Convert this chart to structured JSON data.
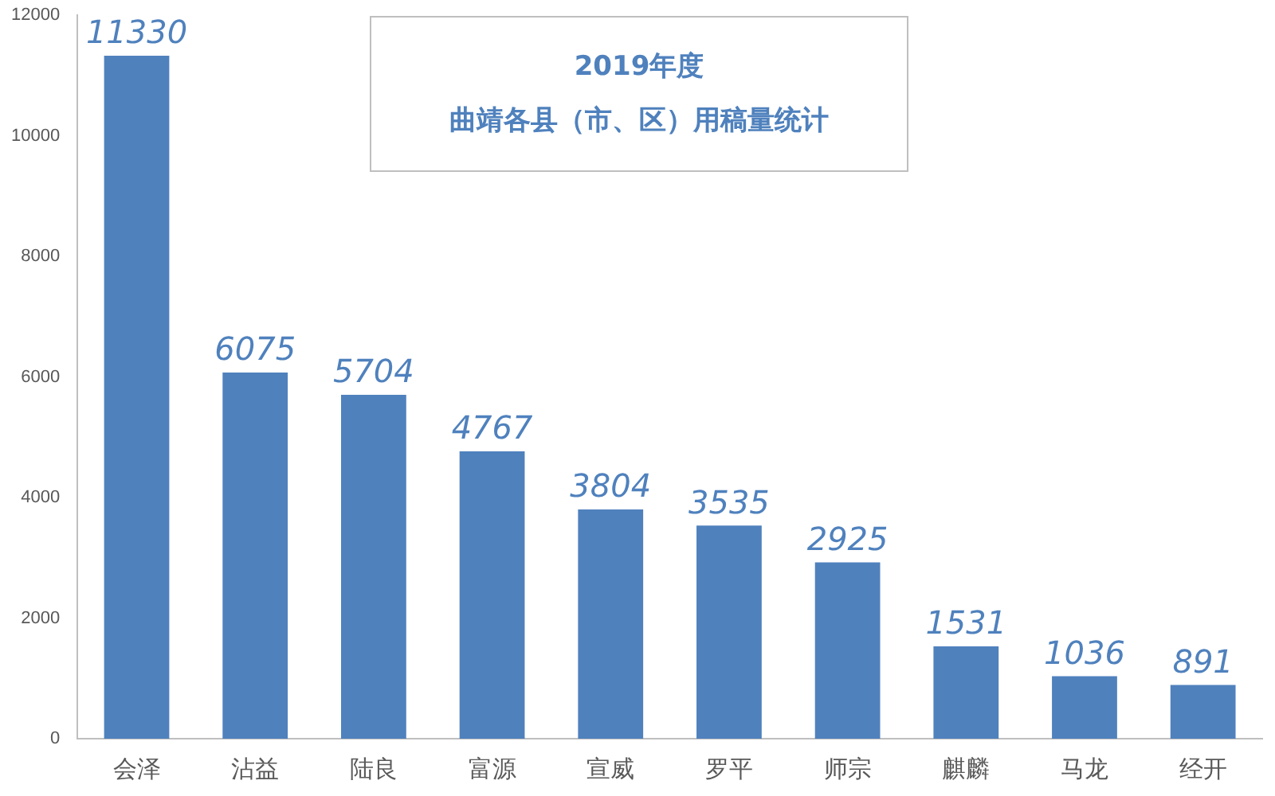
{
  "chart_data": {
    "type": "bar",
    "title": "2019年度",
    "subtitle": "曲靖各县（市、区）用稿量统计",
    "categories": [
      "会泽",
      "沾益",
      "陆良",
      "富源",
      "宣威",
      "罗平",
      "师宗",
      "麒麟",
      "马龙",
      "经开"
    ],
    "values": [
      11330,
      6075,
      5704,
      4767,
      3804,
      3535,
      2925,
      1531,
      1036,
      891
    ],
    "color": "#4f81bd",
    "ylim": [
      0,
      12000
    ],
    "yticks": [
      0,
      2000,
      4000,
      6000,
      8000,
      10000,
      12000
    ],
    "grid": false,
    "legend": false,
    "data_labels": true
  }
}
